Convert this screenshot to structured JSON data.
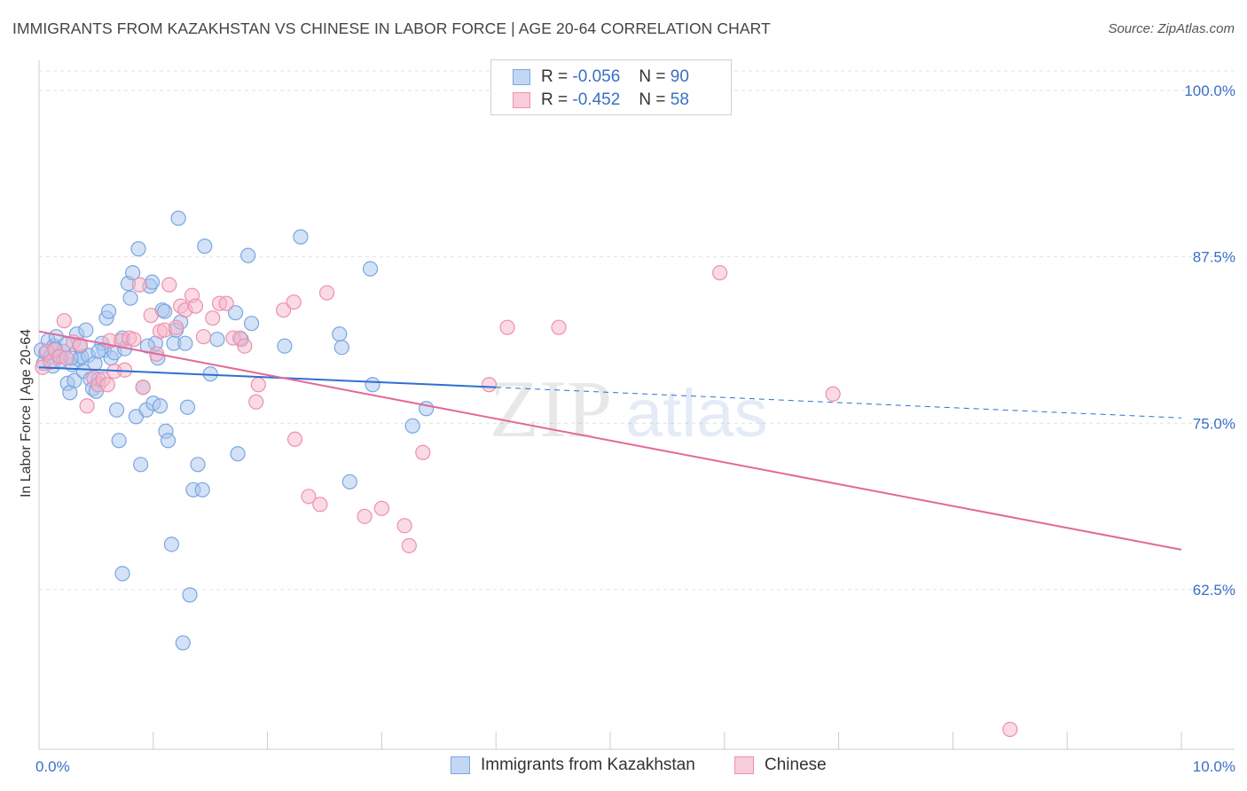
{
  "header": {
    "title": "IMMIGRANTS FROM KAZAKHSTAN VS CHINESE IN LABOR FORCE | AGE 20-64 CORRELATION CHART",
    "source": "Source: ZipAtlas.com"
  },
  "legend_top": {
    "rows": [
      {
        "r_label": "R =",
        "r_value": "-0.056",
        "n_label": "N =",
        "n_value": "90"
      },
      {
        "r_label": "R =",
        "r_value": "-0.452",
        "n_label": "N =",
        "n_value": "58"
      }
    ]
  },
  "watermark": {
    "zip": "ZIP",
    "atlas": "atlas"
  },
  "colors": {
    "blue_fill": "#a9c6f0",
    "blue_stroke": "#7aa6e0",
    "blue_line": "#2f6fd0",
    "pink_fill": "#f5b6ca",
    "pink_stroke": "#ee8fad",
    "pink_line": "#e06a98",
    "tick_label": "#3a6fc4"
  },
  "chart_data": {
    "type": "scatter",
    "title": "IMMIGRANTS FROM KAZAKHSTAN VS CHINESE IN LABOR FORCE | AGE 20-64 CORRELATION CHART",
    "xlabel": "",
    "ylabel": "In Labor Force | Age 20-64",
    "xlim": [
      0,
      10
    ],
    "ylim": [
      50.5,
      102.0
    ],
    "x_tick_labels": [
      {
        "value": 0,
        "label": "0.0%"
      },
      {
        "value": 10,
        "label": "10.0%"
      }
    ],
    "y_ticks": [
      {
        "value": 100.0,
        "label": "100.0%"
      },
      {
        "value": 87.5,
        "label": "87.5%"
      },
      {
        "value": 75.0,
        "label": "75.0%"
      },
      {
        "value": 62.5,
        "label": "62.5%"
      }
    ],
    "grid": true,
    "legend_position": "bottom",
    "series": [
      {
        "name": "Immigrants from Kazakhstan",
        "color": "#a9c6f0",
        "r": -0.056,
        "n": 90,
        "trend": {
          "x0": 0.0,
          "y0": 79.2,
          "x1": 4.0,
          "y1": 77.7,
          "dashed_to_x": 10.0,
          "dashed_to_y": 75.4
        },
        "points": [
          [
            0.02,
            80.5
          ],
          [
            0.04,
            79.5
          ],
          [
            0.06,
            80.3
          ],
          [
            0.08,
            81.2
          ],
          [
            0.1,
            80.0
          ],
          [
            0.12,
            79.3
          ],
          [
            0.13,
            80.8
          ],
          [
            0.15,
            81.5
          ],
          [
            0.17,
            80.1
          ],
          [
            0.19,
            79.7
          ],
          [
            0.21,
            80.4
          ],
          [
            0.23,
            80.9
          ],
          [
            0.25,
            78.0
          ],
          [
            0.27,
            77.3
          ],
          [
            0.29,
            79.4
          ],
          [
            0.31,
            78.2
          ],
          [
            0.33,
            81.7
          ],
          [
            0.35,
            79.8
          ],
          [
            0.37,
            80.0
          ],
          [
            0.39,
            78.9
          ],
          [
            0.41,
            82.0
          ],
          [
            0.43,
            80.1
          ],
          [
            0.45,
            78.3
          ],
          [
            0.47,
            77.6
          ],
          [
            0.49,
            79.5
          ],
          [
            0.5,
            77.4
          ],
          [
            0.52,
            78.3
          ],
          [
            0.55,
            81.0
          ],
          [
            0.57,
            80.5
          ],
          [
            0.59,
            82.9
          ],
          [
            0.61,
            83.4
          ],
          [
            0.63,
            79.9
          ],
          [
            0.66,
            80.3
          ],
          [
            0.68,
            76.0
          ],
          [
            0.7,
            73.7
          ],
          [
            0.73,
            81.4
          ],
          [
            0.75,
            80.6
          ],
          [
            0.78,
            85.5
          ],
          [
            0.8,
            84.4
          ],
          [
            0.82,
            86.3
          ],
          [
            0.85,
            75.5
          ],
          [
            0.87,
            88.1
          ],
          [
            0.89,
            71.9
          ],
          [
            0.91,
            77.7
          ],
          [
            0.94,
            76.0
          ],
          [
            0.97,
            85.3
          ],
          [
            0.99,
            85.6
          ],
          [
            1.0,
            76.5
          ],
          [
            1.02,
            81.0
          ],
          [
            1.04,
            79.9
          ],
          [
            1.06,
            76.3
          ],
          [
            1.08,
            83.5
          ],
          [
            1.11,
            74.4
          ],
          [
            1.13,
            73.7
          ],
          [
            1.16,
            65.9
          ],
          [
            1.18,
            81.0
          ],
          [
            1.2,
            82.0
          ],
          [
            1.22,
            90.4
          ],
          [
            1.24,
            82.6
          ],
          [
            1.26,
            58.5
          ],
          [
            1.28,
            81.0
          ],
          [
            1.3,
            76.2
          ],
          [
            1.32,
            62.1
          ],
          [
            1.35,
            70.0
          ],
          [
            1.39,
            71.9
          ],
          [
            1.43,
            70.0
          ],
          [
            1.45,
            88.3
          ],
          [
            1.5,
            78.7
          ],
          [
            1.56,
            81.3
          ],
          [
            1.72,
            83.3
          ],
          [
            1.74,
            72.7
          ],
          [
            1.77,
            81.3
          ],
          [
            1.83,
            87.6
          ],
          [
            1.86,
            82.5
          ],
          [
            2.15,
            80.8
          ],
          [
            2.29,
            89.0
          ],
          [
            2.63,
            81.7
          ],
          [
            2.65,
            80.7
          ],
          [
            2.9,
            86.6
          ],
          [
            2.92,
            77.9
          ],
          [
            3.27,
            74.8
          ],
          [
            3.39,
            76.1
          ],
          [
            2.72,
            70.6
          ],
          [
            0.73,
            63.7
          ],
          [
            0.36,
            80.8
          ],
          [
            0.52,
            80.4
          ],
          [
            0.95,
            80.8
          ],
          [
            1.1,
            83.4
          ],
          [
            0.14,
            80.6
          ],
          [
            0.28,
            79.9
          ]
        ]
      },
      {
        "name": "Chinese",
        "color": "#f5b6ca",
        "r": -0.452,
        "n": 58,
        "trend": {
          "x0": 0.0,
          "y0": 81.9,
          "x1": 10.0,
          "y1": 65.5
        },
        "points": [
          [
            0.03,
            79.2
          ],
          [
            0.07,
            80.4
          ],
          [
            0.1,
            79.6
          ],
          [
            0.14,
            80.5
          ],
          [
            0.18,
            80.0
          ],
          [
            0.22,
            82.7
          ],
          [
            0.24,
            79.9
          ],
          [
            0.3,
            81.1
          ],
          [
            0.36,
            80.9
          ],
          [
            0.42,
            76.3
          ],
          [
            0.48,
            78.4
          ],
          [
            0.52,
            77.9
          ],
          [
            0.56,
            78.3
          ],
          [
            0.6,
            77.9
          ],
          [
            0.62,
            81.2
          ],
          [
            0.66,
            78.9
          ],
          [
            0.72,
            81.2
          ],
          [
            0.75,
            79.0
          ],
          [
            0.79,
            81.4
          ],
          [
            0.83,
            81.3
          ],
          [
            0.88,
            85.4
          ],
          [
            0.91,
            77.7
          ],
          [
            0.98,
            83.1
          ],
          [
            1.03,
            80.2
          ],
          [
            1.06,
            81.9
          ],
          [
            1.1,
            82.0
          ],
          [
            1.14,
            85.4
          ],
          [
            1.2,
            82.2
          ],
          [
            1.24,
            83.8
          ],
          [
            1.28,
            83.5
          ],
          [
            1.34,
            84.6
          ],
          [
            1.37,
            83.8
          ],
          [
            1.44,
            81.5
          ],
          [
            1.52,
            82.9
          ],
          [
            1.58,
            84.0
          ],
          [
            1.64,
            84.0
          ],
          [
            1.7,
            81.4
          ],
          [
            1.76,
            81.4
          ],
          [
            1.8,
            80.8
          ],
          [
            1.9,
            76.6
          ],
          [
            1.92,
            77.9
          ],
          [
            2.14,
            83.5
          ],
          [
            2.23,
            84.1
          ],
          [
            2.24,
            73.8
          ],
          [
            2.36,
            69.5
          ],
          [
            2.46,
            68.9
          ],
          [
            2.52,
            84.8
          ],
          [
            2.85,
            68.0
          ],
          [
            3.0,
            68.6
          ],
          [
            3.2,
            67.3
          ],
          [
            3.24,
            65.8
          ],
          [
            3.36,
            72.8
          ],
          [
            3.94,
            77.9
          ],
          [
            4.1,
            82.2
          ],
          [
            4.55,
            82.2
          ],
          [
            5.96,
            86.3
          ],
          [
            6.95,
            77.2
          ],
          [
            8.5,
            52.0
          ]
        ]
      }
    ]
  },
  "bottom_legend": {
    "items": [
      {
        "label": "Immigrants from Kazakhstan"
      },
      {
        "label": "Chinese"
      }
    ]
  }
}
